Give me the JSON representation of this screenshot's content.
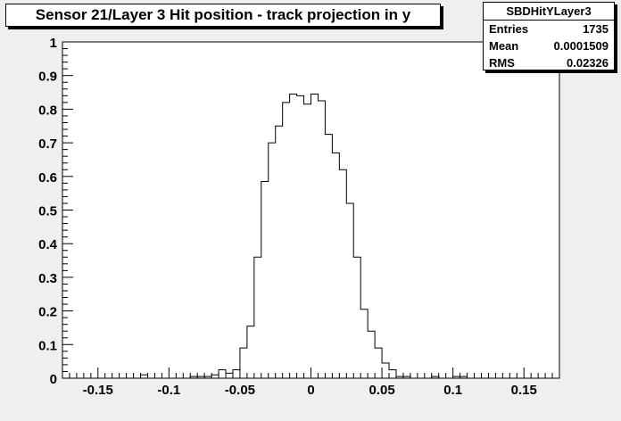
{
  "title": "Sensor 21/Layer 3 Hit position - track projection in y",
  "stats": {
    "name": "SBDHitYLayer3",
    "rows": [
      {
        "label": "Entries",
        "value": "1735"
      },
      {
        "label": "Mean",
        "value": "0.0001509"
      },
      {
        "label": "RMS",
        "value": "0.02326"
      }
    ]
  },
  "chart_data": {
    "type": "histogram",
    "title": "Sensor 21/Layer 3 Hit position - track projection in y",
    "xlabel": "",
    "ylabel": "",
    "xlim": [
      -0.175,
      0.175
    ],
    "ylim": [
      0,
      1
    ],
    "xticks": [
      "-0.15",
      "-0.1",
      "-0.05",
      "0",
      "0.05",
      "0.1",
      "0.15"
    ],
    "xtick_values": [
      -0.15,
      -0.1,
      -0.05,
      0,
      0.05,
      0.1,
      0.15
    ],
    "yticks": [
      "0",
      "0.1",
      "0.2",
      "0.3",
      "0.4",
      "0.5",
      "0.6",
      "0.7",
      "0.8",
      "0.9",
      "1"
    ],
    "ytick_values": [
      0,
      0.1,
      0.2,
      0.3,
      0.4,
      0.5,
      0.6,
      0.7,
      0.8,
      0.9,
      1
    ],
    "bin_edges": [
      -0.175,
      -0.17,
      -0.165,
      -0.16,
      -0.155,
      -0.15,
      -0.145,
      -0.14,
      -0.135,
      -0.13,
      -0.125,
      -0.12,
      -0.115,
      -0.11,
      -0.105,
      -0.1,
      -0.095,
      -0.09,
      -0.085,
      -0.08,
      -0.075,
      -0.07,
      -0.065,
      -0.06,
      -0.055,
      -0.05,
      -0.045,
      -0.04,
      -0.035,
      -0.03,
      -0.025,
      -0.02,
      -0.015,
      -0.01,
      -0.005,
      0,
      0.005,
      0.01,
      0.015,
      0.02,
      0.025,
      0.03,
      0.035,
      0.04,
      0.045,
      0.05,
      0.055,
      0.06,
      0.065,
      0.07,
      0.075,
      0.08,
      0.085,
      0.09,
      0.095,
      0.1,
      0.105,
      0.11,
      0.115,
      0.12,
      0.125,
      0.13,
      0.135,
      0.14,
      0.145,
      0.15,
      0.155,
      0.16,
      0.165,
      0.17,
      0.175
    ],
    "values": [
      0,
      0,
      0,
      0,
      0,
      0,
      0,
      0,
      0,
      0,
      0,
      0.01,
      0,
      0,
      0,
      0,
      0,
      0,
      0.005,
      0.005,
      0.005,
      0.01,
      0.025,
      0.015,
      0.025,
      0.09,
      0.155,
      0.36,
      0.585,
      0.7,
      0.75,
      0.82,
      0.845,
      0.84,
      0.815,
      0.845,
      0.825,
      0.725,
      0.67,
      0.62,
      0.52,
      0.36,
      0.205,
      0.14,
      0.09,
      0.045,
      0.025,
      0.005,
      0.005,
      0,
      0,
      0,
      0.005,
      0,
      0,
      0.005,
      0.005,
      0,
      0,
      0,
      0,
      0,
      0,
      0,
      0,
      0,
      0,
      0,
      0,
      0
    ],
    "grid": false,
    "legend": "none"
  }
}
